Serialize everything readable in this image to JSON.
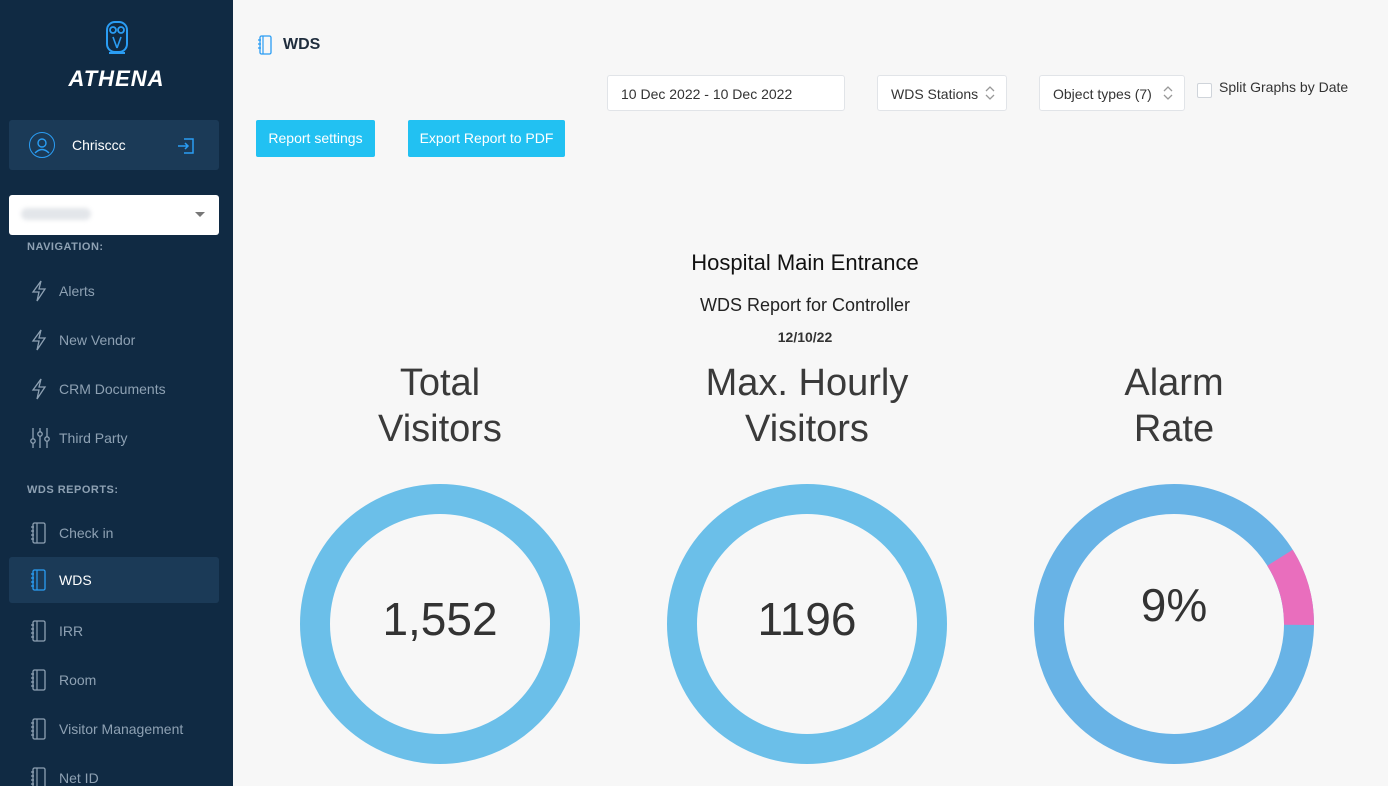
{
  "app": {
    "name": "ATHENA"
  },
  "user": {
    "name": "Chrisccc"
  },
  "sidebar": {
    "navigation_label": "NAVIGATION:",
    "nav_items": [
      {
        "label": "Alerts",
        "icon": "bolt-icon"
      },
      {
        "label": "New Vendor",
        "icon": "bolt-icon"
      },
      {
        "label": "CRM Documents",
        "icon": "bolt-icon"
      },
      {
        "label": "Third Party",
        "icon": "sliders-icon"
      }
    ],
    "reports_label": "WDS REPORTS:",
    "report_items": [
      {
        "label": "Check in",
        "icon": "notebook-icon"
      },
      {
        "label": "WDS",
        "icon": "notebook-icon",
        "active": true
      },
      {
        "label": "IRR",
        "icon": "notebook-icon"
      },
      {
        "label": "Room",
        "icon": "notebook-icon"
      },
      {
        "label": "Visitor Management",
        "icon": "notebook-icon"
      },
      {
        "label": "Net ID",
        "icon": "notebook-icon"
      }
    ]
  },
  "header": {
    "title": "WDS",
    "date_range": "10 Dec 2022 - 10 Dec 2022",
    "stations_select": "WDS Stations",
    "object_types_select": "Object types (7)",
    "split_graphs_label": "Split Graphs by Date",
    "split_graphs_checked": false,
    "report_settings_label": "Report settings",
    "export_label": "Export Report to PDF"
  },
  "report": {
    "location": "Hospital Main Entrance",
    "subtitle": "WDS Report for Controller",
    "date": "12/10/22"
  },
  "kpis": [
    {
      "title_line1": "Total",
      "title_line2": "Visitors",
      "value": "1,552",
      "fraction": 1.0
    },
    {
      "title_line1": "Max. Hourly",
      "title_line2": "Visitors",
      "value": "1196",
      "fraction": 1.0
    },
    {
      "title_line1": "Alarm",
      "title_line2": "Rate",
      "value": "9%",
      "fraction": 0.09
    }
  ],
  "colors": {
    "sidebar_bg": "#102a43",
    "accent": "#22c1f2",
    "ring": "#6bbfe9",
    "ring_alarm_base": "#68b3e6",
    "ring_alarm": "#e96ebd"
  }
}
